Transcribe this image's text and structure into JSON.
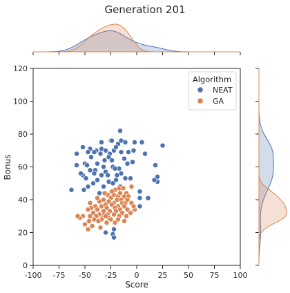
{
  "chart_data": {
    "type": "scatter",
    "title": "Generation 201",
    "xlabel": "Score",
    "ylabel": "Bonus",
    "xlim": [
      -100,
      100
    ],
    "ylim": [
      0,
      120
    ],
    "xticks": [
      -100,
      -75,
      -50,
      -25,
      0,
      25,
      50,
      75,
      100
    ],
    "yticks": [
      0,
      20,
      40,
      60,
      80,
      100,
      120
    ],
    "grid": false,
    "legend": {
      "title": "Algorithm",
      "placement": "upper right"
    },
    "marginals": "kde",
    "series": [
      {
        "name": "NEAT",
        "color": "#4c72b0",
        "points": [
          [
            -16,
            82
          ],
          [
            -25,
            76
          ],
          [
            -24,
            76
          ],
          [
            -15,
            76
          ],
          [
            -34,
            75
          ],
          [
            -11,
            75
          ],
          [
            -18,
            74
          ],
          [
            -52,
            72
          ],
          [
            -45,
            71
          ],
          [
            -34,
            71
          ],
          [
            -30,
            70
          ],
          [
            -39,
            70
          ],
          [
            -22,
            70
          ],
          [
            -2,
            75
          ],
          [
            5,
            75
          ],
          [
            25,
            73
          ],
          [
            -20,
            72
          ],
          [
            -47,
            69
          ],
          [
            -41,
            69
          ],
          [
            -58,
            68
          ],
          [
            -35,
            68
          ],
          [
            -26,
            68
          ],
          [
            -15,
            69
          ],
          [
            -8,
            69
          ],
          [
            8,
            68
          ],
          [
            -3,
            70
          ],
          [
            -44,
            66
          ],
          [
            -27,
            66
          ],
          [
            -12,
            65
          ],
          [
            -31,
            64
          ],
          [
            -24,
            64
          ],
          [
            -4,
            63
          ],
          [
            -9,
            62
          ],
          [
            -50,
            62
          ],
          [
            -38,
            62
          ],
          [
            -48,
            61
          ],
          [
            -32,
            60
          ],
          [
            -23,
            60
          ],
          [
            -45,
            58
          ],
          [
            -40,
            58
          ],
          [
            -17,
            59
          ],
          [
            -21,
            59
          ],
          [
            -30,
            57
          ],
          [
            -41,
            56
          ],
          [
            -15,
            56
          ],
          [
            -34,
            55
          ],
          [
            18,
            61
          ],
          [
            -52,
            55
          ],
          [
            -58,
            61
          ],
          [
            -54,
            56
          ],
          [
            -28,
            55
          ],
          [
            -19,
            55
          ],
          [
            -49,
            53
          ],
          [
            -11,
            53
          ],
          [
            -6,
            53
          ],
          [
            -38,
            52
          ],
          [
            -20,
            52
          ],
          [
            -27,
            51
          ],
          [
            -42,
            50
          ],
          [
            -23,
            50
          ],
          [
            -47,
            48
          ],
          [
            -32,
            48
          ],
          [
            -16,
            48
          ],
          [
            -63,
            46
          ],
          [
            -51,
            46
          ],
          [
            -36,
            44
          ],
          [
            -8,
            42
          ],
          [
            3,
            45
          ],
          [
            20,
            54
          ],
          [
            20,
            51
          ],
          [
            17,
            52
          ],
          [
            3,
            41
          ],
          [
            11,
            41
          ],
          [
            -22,
            22
          ],
          [
            -23,
            19
          ],
          [
            -22,
            17
          ],
          [
            -30,
            20
          ],
          [
            3,
            36
          ],
          [
            -31,
            31
          ]
        ]
      },
      {
        "name": "GA",
        "color": "#dd8452",
        "points": [
          [
            -17,
            47
          ],
          [
            -13,
            47
          ],
          [
            -5,
            48
          ],
          [
            -21,
            46
          ],
          [
            -10,
            44
          ],
          [
            -28,
            43
          ],
          [
            -22,
            43
          ],
          [
            -18,
            42
          ],
          [
            -12,
            42
          ],
          [
            -8,
            42
          ],
          [
            -25,
            41
          ],
          [
            -19,
            40
          ],
          [
            -15,
            40
          ],
          [
            -32,
            40
          ],
          [
            -36,
            39
          ],
          [
            -27,
            39
          ],
          [
            -22,
            38
          ],
          [
            -14,
            38
          ],
          [
            -11,
            38
          ],
          [
            -5,
            38
          ],
          [
            -30,
            37
          ],
          [
            -24,
            37
          ],
          [
            -18,
            36
          ],
          [
            -12,
            36
          ],
          [
            -40,
            36
          ],
          [
            -34,
            36
          ],
          [
            -44,
            35
          ],
          [
            -29,
            35
          ],
          [
            -21,
            35
          ],
          [
            -16,
            34
          ],
          [
            -9,
            34
          ],
          [
            -2,
            34
          ],
          [
            -47,
            34
          ],
          [
            -38,
            34
          ],
          [
            -32,
            33
          ],
          [
            -26,
            33
          ],
          [
            -20,
            33
          ],
          [
            -14,
            32
          ],
          [
            -6,
            32
          ],
          [
            -42,
            32
          ],
          [
            -36,
            31
          ],
          [
            -28,
            31
          ],
          [
            -22,
            31
          ],
          [
            -17,
            30
          ],
          [
            -10,
            30
          ],
          [
            -52,
            30
          ],
          [
            -45,
            30
          ],
          [
            -39,
            30
          ],
          [
            -33,
            29
          ],
          [
            -27,
            29
          ],
          [
            -41,
            28
          ],
          [
            -34,
            28
          ],
          [
            -25,
            28
          ],
          [
            -18,
            28
          ],
          [
            -12,
            27
          ],
          [
            -46,
            27
          ],
          [
            -37,
            27
          ],
          [
            -29,
            26
          ],
          [
            -21,
            26
          ],
          [
            -50,
            25
          ],
          [
            -43,
            24
          ],
          [
            -35,
            23
          ],
          [
            -47,
            22
          ],
          [
            -55,
            29
          ],
          [
            -57,
            30
          ],
          [
            -24,
            45
          ],
          [
            -16,
            44
          ],
          [
            -9,
            40
          ],
          [
            -3,
            36
          ],
          [
            -31,
            44
          ],
          [
            -38,
            41
          ],
          [
            -45,
            38
          ],
          [
            -30,
            30
          ]
        ]
      }
    ]
  }
}
